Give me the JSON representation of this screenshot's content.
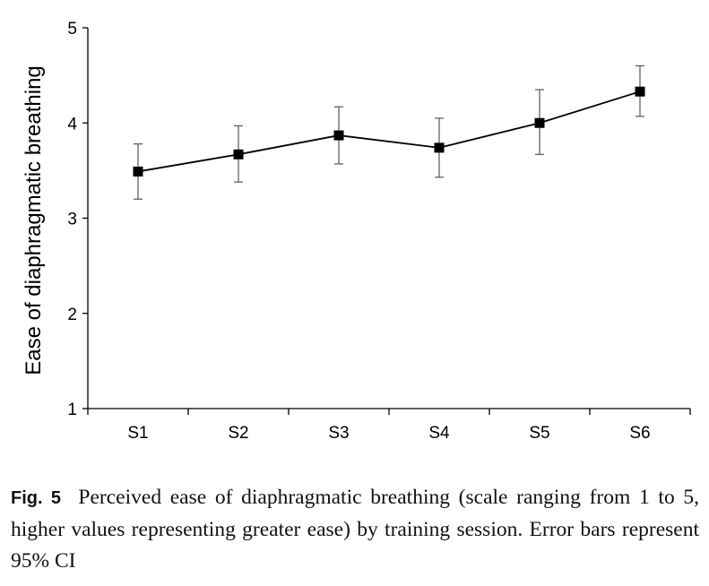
{
  "chart_data": {
    "type": "line",
    "categories": [
      "S1",
      "S2",
      "S3",
      "S4",
      "S5",
      "S6"
    ],
    "series": [
      {
        "values": [
          3.49,
          3.67,
          3.87,
          3.74,
          4.0,
          4.33
        ],
        "ci_lower": [
          3.2,
          3.38,
          3.57,
          3.43,
          3.67,
          4.07
        ],
        "ci_upper": [
          3.78,
          3.97,
          4.17,
          4.05,
          4.35,
          4.6
        ],
        "marker": "square",
        "color": "#000000"
      }
    ],
    "xlabel": "",
    "ylabel": "Ease of diaphragmatic breathing",
    "ylim": [
      1,
      5
    ],
    "yticks": [
      "1",
      "2",
      "3",
      "4",
      "5"
    ],
    "grid": false,
    "legend": "none"
  },
  "caption": {
    "label": "Fig. 5",
    "text": "Perceived ease of diaphragmatic breathing (scale ranging from 1 to 5, higher values representing greater ease) by training session. Error bars represent 95% CI"
  }
}
